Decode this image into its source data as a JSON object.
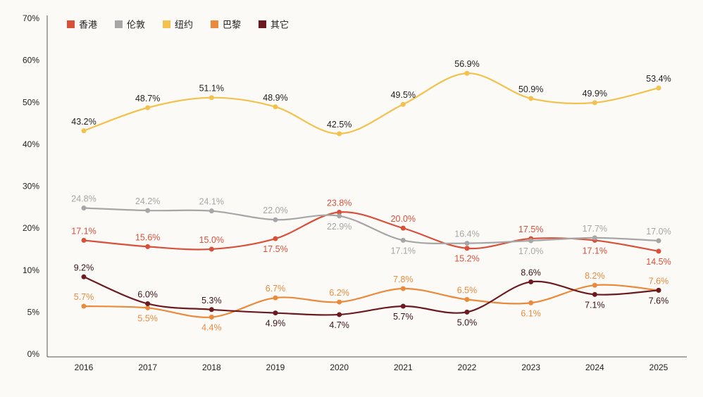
{
  "chart_data": {
    "type": "line",
    "title": "",
    "xlabel": "",
    "ylabel": "",
    "categories": [
      "2016",
      "2017",
      "2018",
      "2019",
      "2020",
      "2021",
      "2022",
      "2023",
      "2024",
      "2025"
    ],
    "y_ticks": [
      "0%",
      "5%",
      "10%",
      "20%",
      "30%",
      "40%",
      "50%",
      "60%",
      "70%"
    ],
    "y_tick_values": [
      0,
      5,
      10,
      20,
      30,
      40,
      50,
      60,
      70
    ],
    "ylim": [
      0,
      70
    ],
    "grid": false,
    "legend_position": "top-left",
    "series": [
      {
        "name": "香港",
        "color": "#d9503a",
        "values": [
          17.1,
          15.6,
          15.0,
          17.5,
          23.8,
          20.0,
          15.2,
          17.5,
          17.1,
          14.5
        ],
        "labels": [
          "17.1%",
          "15.6%",
          "15.0%",
          "17.5%",
          "23.8%",
          "20.0%",
          "15.2%",
          "17.5%",
          "17.1%",
          "14.5%"
        ],
        "label_side": [
          "above",
          "above",
          "above",
          "below",
          "above",
          "above",
          "below",
          "above",
          "below",
          "below"
        ]
      },
      {
        "name": "伦敦",
        "color": "#a6a6a6",
        "values": [
          24.8,
          24.2,
          24.1,
          22.0,
          22.9,
          17.1,
          16.4,
          17.0,
          17.7,
          17.0
        ],
        "labels": [
          "24.8%",
          "24.2%",
          "24.1%",
          "22.0%",
          "22.9%",
          "17.1%",
          "16.4%",
          "17.0%",
          "17.7%",
          "17.0%"
        ],
        "label_side": [
          "above",
          "above",
          "above",
          "above",
          "below",
          "below",
          "above",
          "below",
          "above",
          "above"
        ]
      },
      {
        "name": "纽约",
        "color": "#f2c14e",
        "values": [
          43.2,
          48.7,
          51.1,
          48.9,
          42.5,
          49.5,
          56.9,
          50.9,
          49.9,
          53.4
        ],
        "labels": [
          "43.2%",
          "48.7%",
          "51.1%",
          "48.9%",
          "42.5%",
          "49.5%",
          "56.9%",
          "50.9%",
          "49.9%",
          "53.4%"
        ],
        "label_side": [
          "above",
          "above",
          "above",
          "above",
          "above",
          "above",
          "above",
          "above",
          "above",
          "above"
        ]
      },
      {
        "name": "巴黎",
        "color": "#ea8a3c",
        "values": [
          5.7,
          5.5,
          4.4,
          6.7,
          6.2,
          7.8,
          6.5,
          6.1,
          8.2,
          7.6
        ],
        "labels": [
          "5.7%",
          "5.5%",
          "4.4%",
          "6.7%",
          "6.2%",
          "7.8%",
          "6.5%",
          "6.1%",
          "8.2%",
          "7.6%"
        ],
        "label_side": [
          "above",
          "below",
          "below",
          "above",
          "above",
          "above",
          "above",
          "below",
          "above",
          "above"
        ]
      },
      {
        "name": "其它",
        "color": "#6b1b1f",
        "values": [
          9.2,
          6.0,
          5.3,
          4.9,
          4.7,
          5.7,
          5.0,
          8.6,
          7.1,
          7.6
        ],
        "labels": [
          "9.2%",
          "6.0%",
          "5.3%",
          "4.9%",
          "4.7%",
          "5.7%",
          "5.0%",
          "8.6%",
          "7.1%",
          "7.6%"
        ],
        "label_side": [
          "above",
          "above",
          "above",
          "below",
          "below",
          "below",
          "below",
          "above",
          "below",
          "below"
        ]
      }
    ]
  }
}
